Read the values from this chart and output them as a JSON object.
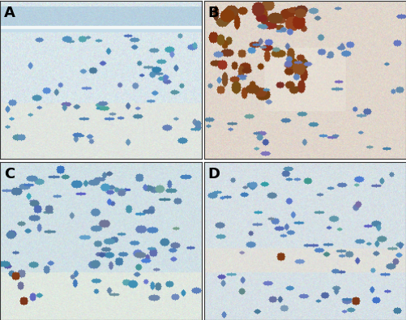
{
  "title": "",
  "panels": [
    "A",
    "B",
    "C",
    "D"
  ],
  "fig_width": 5.01,
  "fig_height": 3.95,
  "dpi": 100,
  "label_fontsize": 13,
  "label_color": "#000000",
  "background": "#ffffff"
}
